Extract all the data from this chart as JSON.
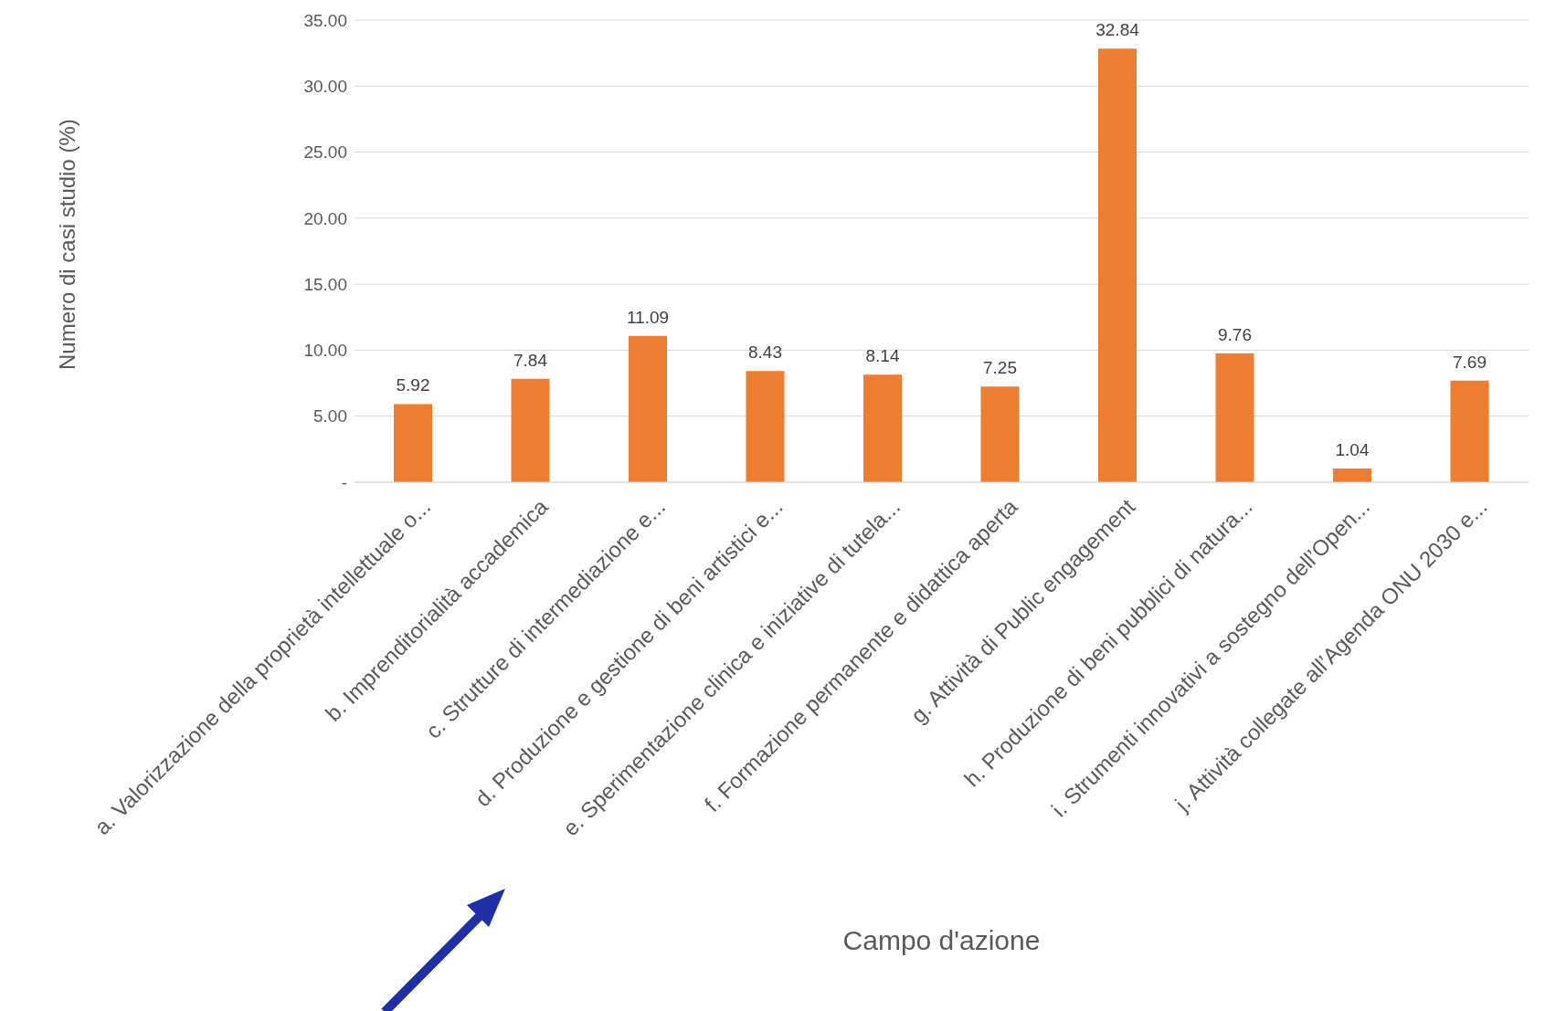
{
  "chart_data": {
    "type": "bar",
    "xlabel": "Campo d'azione",
    "ylabel": "Numero di casi studio (%)",
    "categories": [
      "a. Valorizzazione della proprietà intellettuale o...",
      "b. Imprenditorialità accademica",
      "c. Strutture di intermediazione e...",
      "d. Produzione e gestione di beni artistici e...",
      "e. Sperimentazione clinica e iniziative di tutela...",
      "f. Formazione permanente e didattica aperta",
      "g. Attività di Public engagement",
      "h. Produzione  di beni pubblici di natura...",
      "i. Strumenti  innovativi a sostegno dell’Open...",
      "j. Attività collegate all’Agenda ONU 2030 e..."
    ],
    "values": [
      5.92,
      7.84,
      11.09,
      8.43,
      8.14,
      7.25,
      32.84,
      9.76,
      1.04,
      7.69
    ],
    "color": "#ed7d31",
    "ylim": [
      0,
      35
    ],
    "yticks": [
      {
        "value": 0,
        "label": "-"
      },
      {
        "value": 5,
        "label": "5.00"
      },
      {
        "value": 10,
        "label": "10.00"
      },
      {
        "value": 15,
        "label": "15.00"
      },
      {
        "value": 20,
        "label": "20.00"
      },
      {
        "value": 25,
        "label": "25.00"
      },
      {
        "value": 30,
        "label": "30.00"
      },
      {
        "value": 35,
        "label": "35.00"
      }
    ],
    "grid": "y",
    "data_labels": true
  }
}
